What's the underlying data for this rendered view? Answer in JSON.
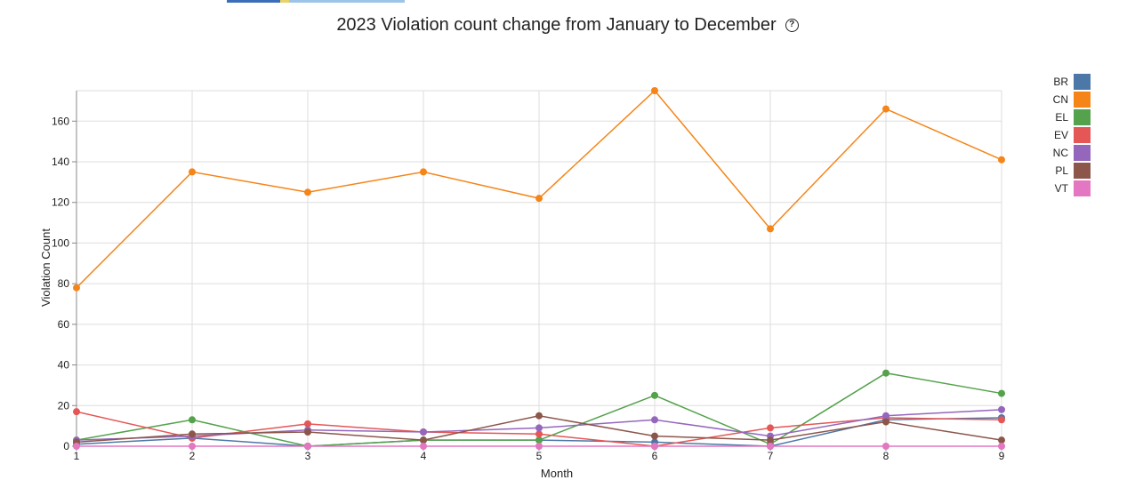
{
  "chart_data": {
    "type": "line",
    "title": "2023 Violation count change from January to December",
    "xlabel": "Month",
    "ylabel": "Violation Count",
    "x": [
      1,
      2,
      3,
      4,
      5,
      6,
      7,
      8,
      9
    ],
    "xlim": [
      1,
      9
    ],
    "ylim": [
      0,
      175
    ],
    "yticks": [
      0,
      20,
      40,
      60,
      80,
      100,
      120,
      140,
      160
    ],
    "grid": true,
    "legend_position": "top-right",
    "series": [
      {
        "name": "BR",
        "color": "#4c78a8",
        "values": [
          1,
          4,
          0,
          3,
          3,
          2,
          0,
          13,
          14
        ]
      },
      {
        "name": "CN",
        "color": "#f58518",
        "values": [
          78,
          135,
          125,
          135,
          122,
          175,
          107,
          166,
          141
        ]
      },
      {
        "name": "EL",
        "color": "#54a24b",
        "values": [
          3,
          13,
          0,
          3,
          3,
          25,
          1,
          36,
          26
        ]
      },
      {
        "name": "EV",
        "color": "#e45756",
        "values": [
          17,
          4,
          11,
          7,
          6,
          0,
          9,
          14,
          13
        ]
      },
      {
        "name": "NC",
        "color": "#9467bd",
        "values": [
          3,
          5,
          8,
          7,
          9,
          13,
          5,
          15,
          18
        ]
      },
      {
        "name": "PL",
        "color": "#8c564b",
        "values": [
          2,
          6,
          7,
          3,
          15,
          5,
          3,
          12,
          3
        ]
      },
      {
        "name": "VT",
        "color": "#e377c2",
        "values": [
          0,
          0,
          0,
          0,
          0,
          0,
          0,
          0,
          0
        ]
      }
    ]
  },
  "help_icon": "help-circle-icon",
  "help_glyph": "?"
}
